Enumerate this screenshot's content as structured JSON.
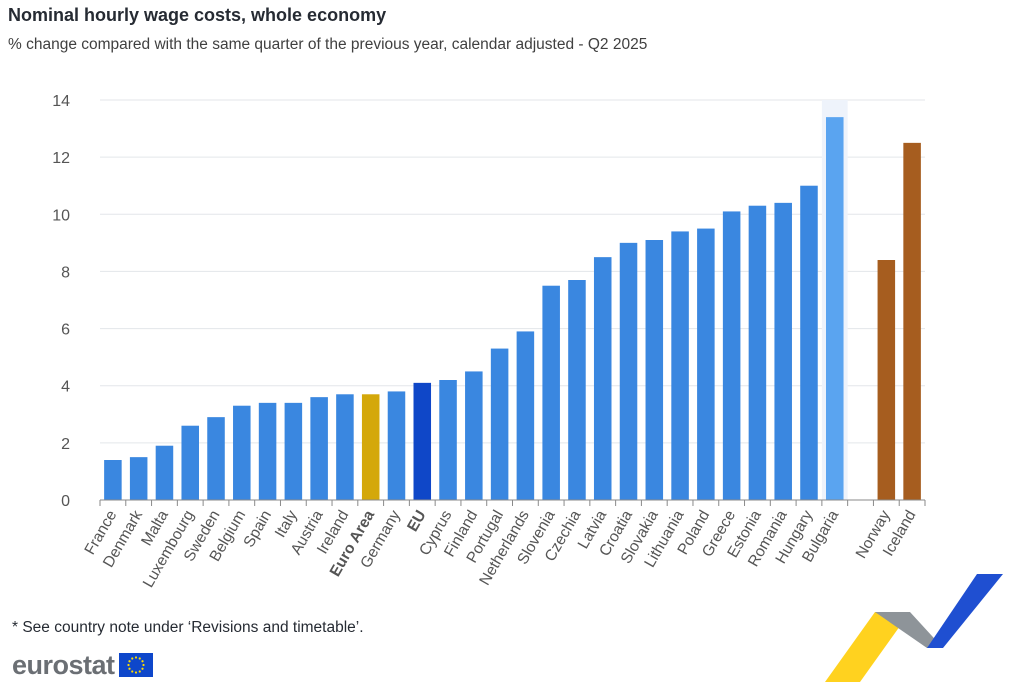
{
  "title": "Nominal hourly wage costs, whole economy",
  "subtitle": "% change compared with the same quarter of the previous year, calendar adjusted - Q2 2025",
  "footnote": "* See country note under ‘Revisions and timetable’.",
  "logo": {
    "text": "eurostat",
    "icon": "eu-flag-icon"
  },
  "chart_data": {
    "type": "bar",
    "categories": [
      "France",
      "Denmark",
      "Malta",
      "Luxembourg",
      "Sweden",
      "Belgium",
      "Spain",
      "Italy",
      "Austria",
      "Ireland",
      "Euro Area",
      "Germany",
      "EU",
      "Cyprus",
      "Finland",
      "Portugal",
      "Netherlands",
      "Slovenia",
      "Czechia",
      "Latvia",
      "Croatia",
      "Slovakia",
      "Lithuania",
      "Poland",
      "Greece",
      "Estonia",
      "Romania",
      "Hungary",
      "Bulgaria",
      "",
      "Norway",
      "Iceland"
    ],
    "values": [
      1.4,
      1.5,
      1.9,
      2.6,
      2.9,
      3.3,
      3.4,
      3.4,
      3.6,
      3.7,
      3.7,
      3.8,
      4.1,
      4.2,
      4.5,
      5.3,
      5.9,
      7.5,
      7.7,
      8.5,
      9.0,
      9.1,
      9.4,
      9.5,
      10.1,
      10.3,
      10.4,
      11.0,
      13.4,
      null,
      8.4,
      12.5
    ],
    "bold_categories": [
      "Euro Area",
      "EU"
    ],
    "highlighted_category": "Bulgaria",
    "ylim": [
      0,
      14
    ],
    "yticks": [
      0,
      2,
      4,
      6,
      8,
      10,
      12,
      14
    ],
    "grid": true,
    "colors": {
      "default": "#3a87e0",
      "euro_area": "#d4a80a",
      "eu": "#0f47c8",
      "highlight": "#5aa4f0",
      "efta": "#a65d1f",
      "highlight_band": "#eef3fb",
      "grid": "#e3e6ea",
      "axis": "#8a8a8a",
      "label": "#555555"
    }
  }
}
